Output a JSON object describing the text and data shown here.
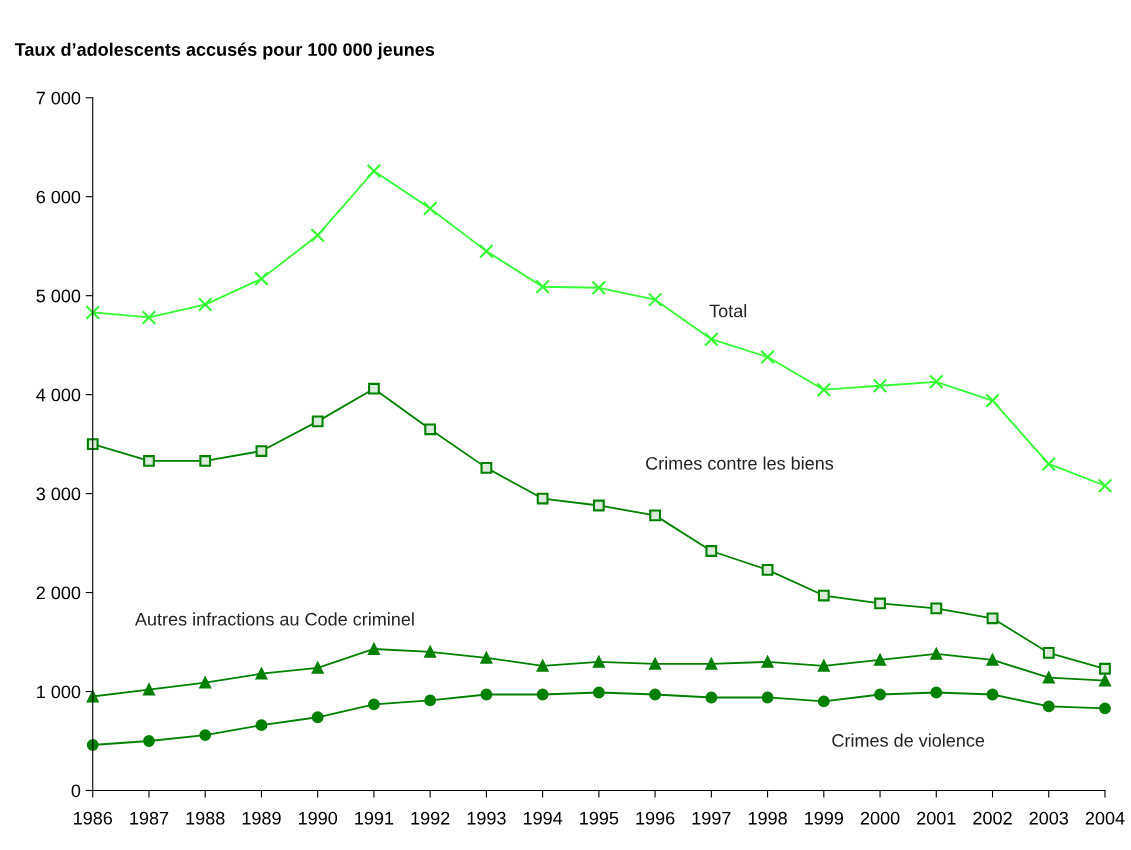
{
  "chart_data": {
    "type": "line",
    "ylabel": "Taux d’adolescents accusés pour 100 000 jeunes",
    "categories": [
      "1986",
      "1987",
      "1988",
      "1989",
      "1990",
      "1991",
      "1992",
      "1993",
      "1994",
      "1995",
      "1996",
      "1997",
      "1998",
      "1999",
      "2000",
      "2001",
      "2002",
      "2003",
      "2004"
    ],
    "series": [
      {
        "name": "Total",
        "color": "#33ff33",
        "marker": "cross",
        "values": [
          4830,
          4780,
          4910,
          5170,
          5610,
          6260,
          5880,
          5450,
          5090,
          5080,
          4960,
          4560,
          4380,
          4050,
          4090,
          4130,
          3940,
          3300,
          3080
        ]
      },
      {
        "name": "Crimes contre les biens",
        "color": "#008000",
        "marker": "square",
        "values": [
          3500,
          3330,
          3330,
          3430,
          3730,
          4060,
          3650,
          3260,
          2950,
          2880,
          2780,
          2420,
          2230,
          1970,
          1890,
          1840,
          1740,
          1390,
          1230
        ]
      },
      {
        "name": "Autres infractions au Code criminel",
        "color": "#008000",
        "marker": "triangle",
        "values": [
          950,
          1020,
          1090,
          1180,
          1240,
          1430,
          1400,
          1340,
          1260,
          1300,
          1280,
          1280,
          1300,
          1260,
          1320,
          1380,
          1320,
          1140,
          1110
        ]
      },
      {
        "name": "Crimes de violence",
        "color": "#008000",
        "marker": "circle",
        "values": [
          460,
          500,
          560,
          660,
          740,
          870,
          910,
          970,
          970,
          990,
          970,
          940,
          940,
          900,
          970,
          990,
          970,
          850,
          830
        ]
      }
    ],
    "ylim": [
      0,
      7000
    ],
    "yticks": [
      0,
      {
        "value": 1000,
        "label": "1 000"
      },
      {
        "value": 2000,
        "label": "2 000"
      },
      {
        "value": 3000,
        "label": "3 000"
      },
      {
        "value": 4000,
        "label": "4 000"
      },
      {
        "value": 5000,
        "label": "5 000"
      },
      {
        "value": 6000,
        "label": "6 000"
      },
      {
        "value": 7000,
        "label": "7 000"
      }
    ],
    "grid": false,
    "legend": false,
    "line_style": "solid"
  }
}
